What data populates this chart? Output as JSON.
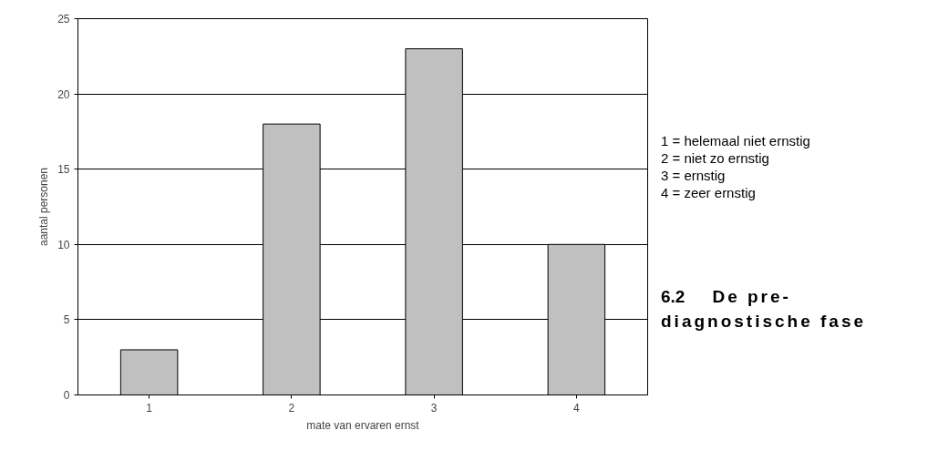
{
  "chart_data": {
    "type": "bar",
    "xlabel": "mate van ervaren ernst",
    "ylabel": "aantal personen",
    "categories": [
      "1",
      "2",
      "3",
      "4"
    ],
    "values": [
      3,
      18,
      23,
      10
    ],
    "color": "#c0c0c0",
    "ylim": [
      0,
      25
    ],
    "yticks": [
      0,
      5,
      10,
      15,
      20,
      25
    ],
    "grid": "y",
    "annotations": [
      "1 = helemaal niet ernstig",
      "2 = niet zo ernstig",
      "3 = ernstig",
      "4 = zeer ernstig",
      "6.2",
      "De pre-diagnostische fase"
    ]
  }
}
